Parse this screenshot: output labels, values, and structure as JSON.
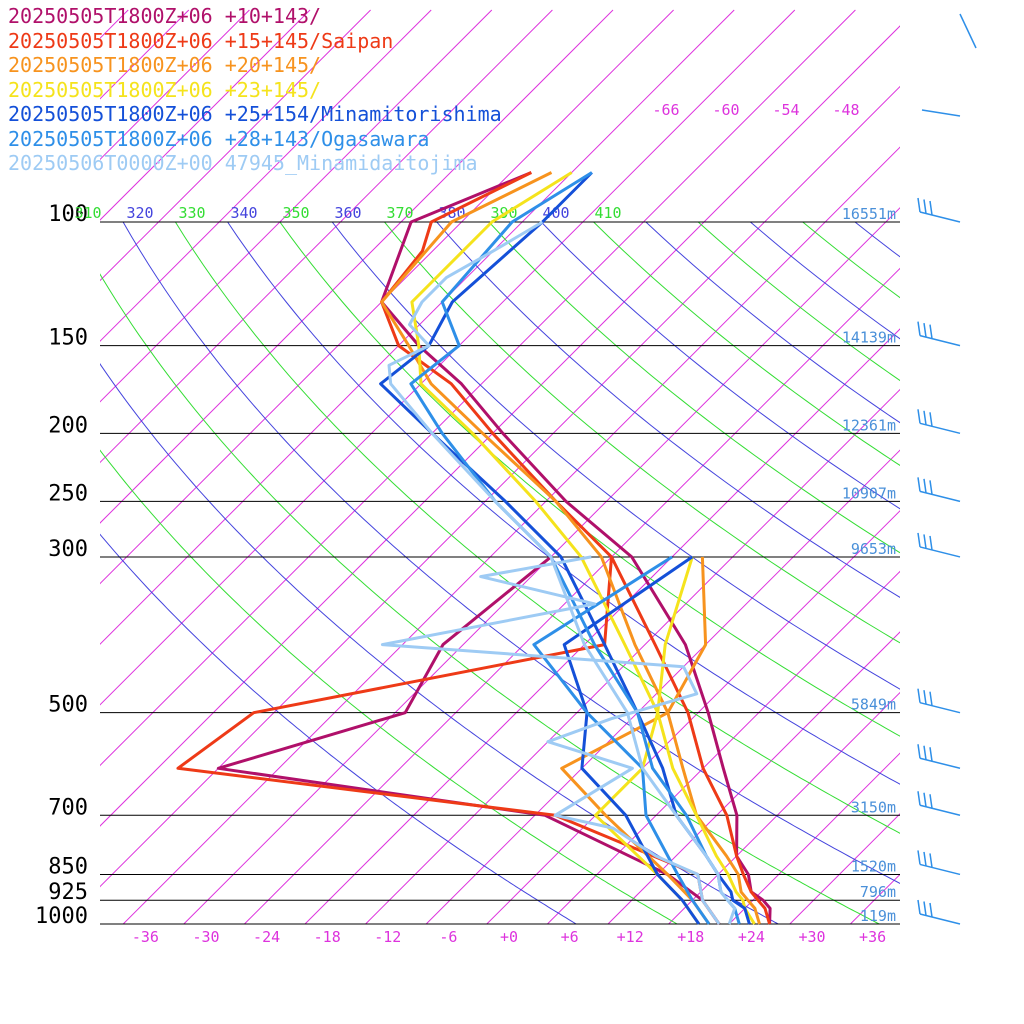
{
  "legend": [
    {
      "label": "20250505T1800Z+06 +10+143/",
      "color": "#b0106a"
    },
    {
      "label": "20250505T1800Z+06 +15+145/Saipan",
      "color": "#ee3a17"
    },
    {
      "label": "20250505T1800Z+06 +20+145/",
      "color": "#f7931e"
    },
    {
      "label": "20250505T1800Z+06 +23+145/",
      "color": "#f5e31c"
    },
    {
      "label": "20250505T1800Z+06 +25+154/Minamitorishima",
      "color": "#1450d8"
    },
    {
      "label": "20250505T1800Z+06 +28+143/Ogasawara",
      "color": "#2e8fe8"
    },
    {
      "label": "20250506T0000Z+00 47945_Minamidaitojima",
      "color": "#9ecbf4"
    }
  ],
  "chart_data": {
    "type": "skew-t",
    "colors": {
      "temp_axis": "#dd33dd",
      "height": "#4a90d9",
      "theta": "#4444dd",
      "theta_alt": "#33dd33",
      "wind": "#2e8fe8"
    },
    "pressure_levels": [
      {
        "p": 100,
        "label": "100",
        "height": "16551m"
      },
      {
        "p": 150,
        "label": "150",
        "height": "14139m"
      },
      {
        "p": 200,
        "label": "200",
        "height": "12361m"
      },
      {
        "p": 250,
        "label": "250",
        "height": "10907m"
      },
      {
        "p": 300,
        "label": "300",
        "height": "9653m"
      },
      {
        "p": 500,
        "label": "500",
        "height": "5849m"
      },
      {
        "p": 700,
        "label": "700",
        "height": "3150m"
      },
      {
        "p": 850,
        "label": "850",
        "height": "1520m"
      },
      {
        "p": 925,
        "label": "925",
        "height": "796m"
      },
      {
        "p": 1000,
        "label": "1000",
        "height": "119m"
      }
    ],
    "temp_ticks": [
      "-36",
      "-30",
      "-24",
      "-18",
      "-12",
      "-6",
      "+0",
      "+6",
      "+12",
      "+18",
      "+24",
      "+30",
      "+36"
    ],
    "top_temp_labels": [
      "-66",
      "-60",
      "-54",
      "-48"
    ],
    "theta_labels": [
      "310",
      "320",
      "330",
      "340",
      "350",
      "360",
      "370",
      "380",
      "390",
      "400",
      "410"
    ],
    "series": [
      {
        "name": "20250505T1800Z+06 +10+143/",
        "color": "#b0106a",
        "temp": [
          [
            1000,
            26
          ],
          [
            950,
            24.5
          ],
          [
            925,
            23
          ],
          [
            900,
            21
          ],
          [
            850,
            19
          ],
          [
            800,
            16
          ],
          [
            700,
            12
          ],
          [
            600,
            6
          ],
          [
            500,
            -1
          ],
          [
            400,
            -10
          ],
          [
            300,
            -24
          ],
          [
            250,
            -36
          ],
          [
            200,
            -49
          ],
          [
            170,
            -58
          ],
          [
            150,
            -66
          ],
          [
            130,
            -74
          ],
          [
            100,
            -79
          ],
          [
            85,
            -72
          ]
        ],
        "dew": [
          [
            1000,
            21
          ],
          [
            925,
            17
          ],
          [
            850,
            11
          ],
          [
            700,
            -7
          ],
          [
            600,
            -44
          ],
          [
            500,
            -31
          ],
          [
            400,
            -34
          ],
          [
            300,
            -32
          ]
        ]
      },
      {
        "name": "20250505T1800Z+06 +15+145/Saipan",
        "color": "#ee3a17",
        "temp": [
          [
            1000,
            26
          ],
          [
            950,
            24
          ],
          [
            925,
            22.5
          ],
          [
            900,
            21
          ],
          [
            850,
            18.5
          ],
          [
            800,
            16
          ],
          [
            700,
            11
          ],
          [
            600,
            4
          ],
          [
            500,
            -3
          ],
          [
            400,
            -13
          ],
          [
            300,
            -26
          ],
          [
            250,
            -37
          ],
          [
            200,
            -50
          ],
          [
            170,
            -59
          ],
          [
            150,
            -68
          ],
          [
            130,
            -74
          ],
          [
            110,
            -75
          ],
          [
            100,
            -77
          ],
          [
            85,
            -72
          ]
        ],
        "dew": [
          [
            1000,
            21
          ],
          [
            925,
            17
          ],
          [
            850,
            14
          ],
          [
            700,
            -6
          ],
          [
            600,
            -48
          ],
          [
            500,
            -46
          ],
          [
            400,
            -18
          ],
          [
            300,
            -26
          ]
        ]
      },
      {
        "name": "20250505T1800Z+06 +20+145/",
        "color": "#f7931e",
        "temp": [
          [
            1000,
            25
          ],
          [
            950,
            23
          ],
          [
            925,
            21.5
          ],
          [
            900,
            20
          ],
          [
            850,
            18
          ],
          [
            800,
            15
          ],
          [
            700,
            8
          ],
          [
            600,
            2
          ],
          [
            500,
            -5
          ],
          [
            400,
            -15
          ],
          [
            300,
            -27
          ],
          [
            250,
            -37
          ],
          [
            200,
            -51
          ],
          [
            170,
            -61
          ],
          [
            150,
            -67
          ],
          [
            130,
            -74
          ],
          [
            100,
            -75
          ],
          [
            85,
            -70
          ]
        ],
        "dew": [
          [
            1000,
            20
          ],
          [
            925,
            16
          ],
          [
            850,
            11
          ],
          [
            700,
            -1
          ],
          [
            600,
            -10
          ],
          [
            500,
            -5
          ],
          [
            400,
            -8
          ],
          [
            300,
            -17
          ]
        ]
      },
      {
        "name": "20250505T1800Z+06 +23+145/",
        "color": "#f5e31c",
        "temp": [
          [
            1000,
            24.5
          ],
          [
            950,
            22
          ],
          [
            925,
            21
          ],
          [
            900,
            19.5
          ],
          [
            850,
            17
          ],
          [
            800,
            14
          ],
          [
            700,
            8
          ],
          [
            600,
            1
          ],
          [
            500,
            -6
          ],
          [
            400,
            -16
          ],
          [
            300,
            -29
          ],
          [
            250,
            -39
          ],
          [
            200,
            -52
          ],
          [
            170,
            -62
          ],
          [
            150,
            -66
          ],
          [
            130,
            -71
          ],
          [
            100,
            -71
          ],
          [
            85,
            -68
          ]
        ],
        "dew": [
          [
            1000,
            19
          ],
          [
            925,
            15
          ],
          [
            850,
            10
          ],
          [
            700,
            -2
          ],
          [
            600,
            -2
          ],
          [
            500,
            -6
          ],
          [
            400,
            -12
          ],
          [
            300,
            -18
          ]
        ]
      },
      {
        "name": "20250505T1800Z+06 +25+154/Minamitorishima",
        "color": "#1450d8",
        "temp": [
          [
            1000,
            24
          ],
          [
            950,
            22
          ],
          [
            925,
            20
          ],
          [
            900,
            19
          ],
          [
            850,
            16
          ],
          [
            800,
            13
          ],
          [
            700,
            6
          ],
          [
            600,
            0
          ],
          [
            500,
            -8
          ],
          [
            400,
            -18
          ],
          [
            300,
            -31
          ],
          [
            250,
            -42
          ],
          [
            200,
            -56
          ],
          [
            170,
            -66
          ],
          [
            150,
            -65
          ],
          [
            130,
            -67
          ],
          [
            100,
            -66
          ],
          [
            85,
            -66
          ]
        ],
        "dew": [
          [
            1000,
            19
          ],
          [
            925,
            15
          ],
          [
            850,
            10
          ],
          [
            700,
            1
          ],
          [
            600,
            -8
          ],
          [
            500,
            -13
          ],
          [
            400,
            -22
          ],
          [
            300,
            -18
          ]
        ]
      },
      {
        "name": "20250505T1800Z+06 +28+143/Ogasawara",
        "color": "#2e8fe8",
        "temp": [
          [
            1000,
            23
          ],
          [
            950,
            21
          ],
          [
            925,
            19.5
          ],
          [
            900,
            18
          ],
          [
            850,
            16
          ],
          [
            800,
            13
          ],
          [
            700,
            7
          ],
          [
            600,
            -1
          ],
          [
            500,
            -8
          ],
          [
            400,
            -19
          ],
          [
            300,
            -32
          ],
          [
            250,
            -43
          ],
          [
            200,
            -55
          ],
          [
            170,
            -63
          ],
          [
            150,
            -62
          ],
          [
            130,
            -68
          ],
          [
            100,
            -69
          ],
          [
            85,
            -66
          ]
        ],
        "dew": [
          [
            1000,
            20
          ],
          [
            925,
            16
          ],
          [
            850,
            12
          ],
          [
            700,
            3
          ],
          [
            600,
            -2
          ],
          [
            500,
            -13
          ],
          [
            400,
            -25
          ],
          [
            300,
            -20
          ]
        ]
      },
      {
        "name": "20250506T0000Z+00 47945_Minamidaitojima",
        "color": "#9ecbf4",
        "temp": [
          [
            1000,
            22
          ],
          [
            950,
            21
          ],
          [
            925,
            19.5
          ],
          [
            900,
            18
          ],
          [
            850,
            16
          ],
          [
            800,
            13
          ],
          [
            700,
            6
          ],
          [
            600,
            -2
          ],
          [
            500,
            -9
          ],
          [
            400,
            -20
          ],
          [
            300,
            -32
          ],
          [
            250,
            -43
          ],
          [
            200,
            -56
          ],
          [
            170,
            -65
          ],
          [
            160,
            -67
          ],
          [
            150,
            -65
          ],
          [
            140,
            -69
          ],
          [
            130,
            -70
          ],
          [
            120,
            -70
          ],
          [
            110,
            -68
          ],
          [
            100,
            -66
          ]
        ],
        "dew": [
          [
            1000,
            21
          ],
          [
            925,
            17
          ],
          [
            850,
            14
          ],
          [
            800,
            8
          ],
          [
            730,
            1
          ],
          [
            700,
            -6
          ],
          [
            600,
            -3
          ],
          [
            550,
            -14
          ],
          [
            510,
            -10
          ],
          [
            470,
            -4
          ],
          [
            430,
            -8
          ],
          [
            400,
            -40
          ],
          [
            350,
            -23
          ],
          [
            320,
            -37
          ],
          [
            300,
            -28
          ]
        ]
      }
    ]
  }
}
